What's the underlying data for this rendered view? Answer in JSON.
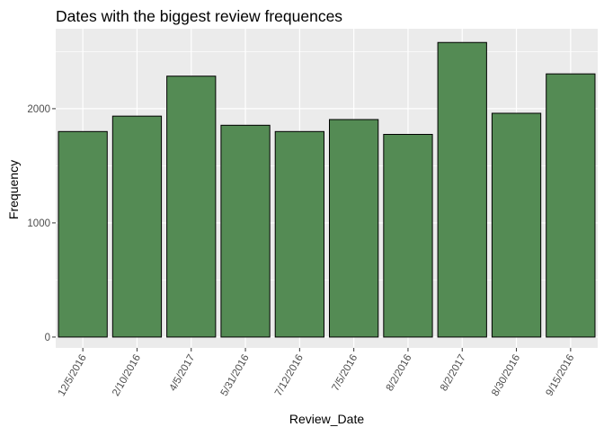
{
  "chart_data": {
    "type": "bar",
    "title": "Dates with the biggest review frequences",
    "xlabel": "Review_Date",
    "ylabel": "Frequency",
    "categories": [
      "12/5/2016",
      "2/10/2016",
      "4/5/2017",
      "5/31/2016",
      "7/12/2016",
      "7/5/2016",
      "8/2/2016",
      "8/2/2017",
      "8/30/2016",
      "9/15/2016"
    ],
    "values": [
      1800,
      1935,
      2285,
      1855,
      1800,
      1905,
      1775,
      2580,
      1960,
      2305
    ],
    "ylim": [
      -95,
      2700
    ],
    "yticks": [
      0,
      1000,
      2000
    ],
    "ytick_labels": [
      "0",
      "1000",
      "2000"
    ],
    "grid": true,
    "legend": "none",
    "colors": {
      "panel_background": "#ebebeb",
      "grid_major": "#ffffff",
      "bar_fill": "#548b54",
      "bar_outline": "#000000",
      "tick_text": "#4d4d4d",
      "title_text": "#000000"
    }
  }
}
